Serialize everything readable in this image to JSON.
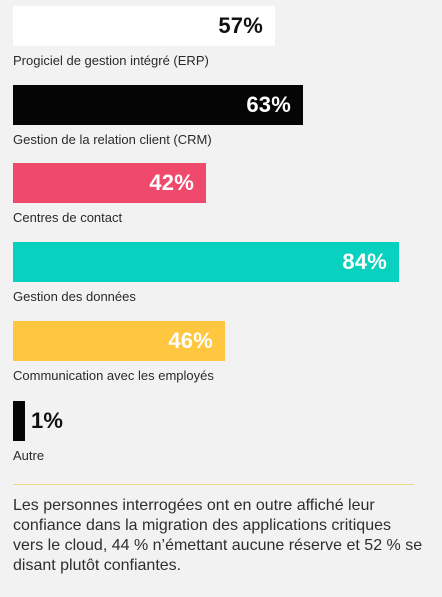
{
  "chart_data": {
    "type": "bar",
    "orientation": "horizontal",
    "categories": [
      "Progiciel de gestion intégré (ERP)",
      "Gestion de la relation client (CRM)",
      "Centres de contact",
      "Gestion des données",
      "Communication avec les employés",
      "Autre"
    ],
    "values": [
      57,
      63,
      42,
      84,
      46,
      1
    ],
    "value_labels": [
      "57%",
      "63%",
      "42%",
      "84%",
      "46%",
      "1%"
    ],
    "colors": [
      "#ffffff",
      "#050505",
      "#ef4a6c",
      "#08d2bf",
      "#ffc63f",
      "#050505"
    ],
    "text_colors": [
      "#111111",
      "#ffffff",
      "#ffffff",
      "#ffffff",
      "#ffffff",
      "#111111"
    ],
    "xlim": [
      0,
      100
    ]
  },
  "note": {
    "text": "Les personnes interrogées ont en outre affiché leur confiance dans la migration des applications critiques vers le cloud, 44 % n’émettant aucune réserve et 52 % se disant plutôt confiantes."
  }
}
